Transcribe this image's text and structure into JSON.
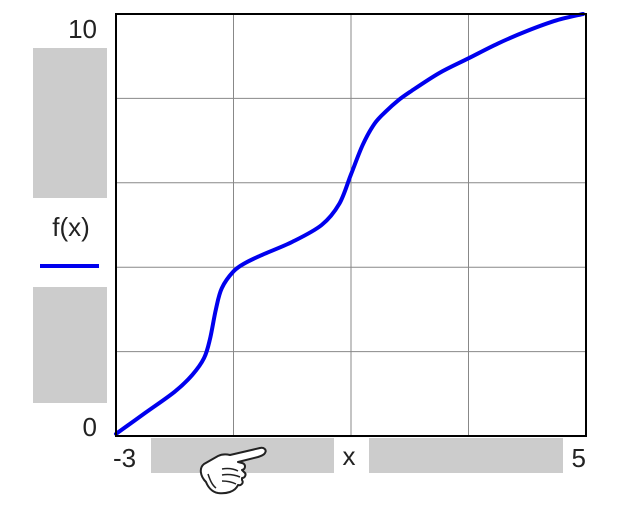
{
  "chart_data": {
    "type": "line",
    "title": "",
    "xlabel": "x",
    "ylabel": "f(x)",
    "xlim": [
      -3,
      5
    ],
    "ylim": [
      0,
      10
    ],
    "x_tick_labels": [
      "-3",
      "5"
    ],
    "y_tick_labels": [
      "0",
      "10"
    ],
    "grid": true,
    "series": [
      {
        "color": "#0000ee",
        "x": [
          -3,
          -2.5,
          -2,
          -1.7,
          -1.5,
          -1.4,
          -1.3,
          -1.2,
          -1,
          -0.8,
          -0.5,
          0,
          0.5,
          0.8,
          1,
          1.2,
          1.4,
          1.6,
          1.8,
          2,
          2.5,
          3,
          3.5,
          4,
          4.5,
          4.95
        ],
        "y": [
          0.05,
          0.55,
          1.05,
          1.45,
          1.85,
          2.3,
          3.0,
          3.5,
          3.9,
          4.1,
          4.3,
          4.6,
          5.0,
          5.5,
          6.2,
          6.9,
          7.4,
          7.7,
          7.95,
          8.15,
          8.6,
          8.95,
          9.3,
          9.6,
          9.85,
          10.0
        ]
      }
    ]
  },
  "overlays": {
    "hand_cursor_icon": "pointing-hand-icon"
  }
}
